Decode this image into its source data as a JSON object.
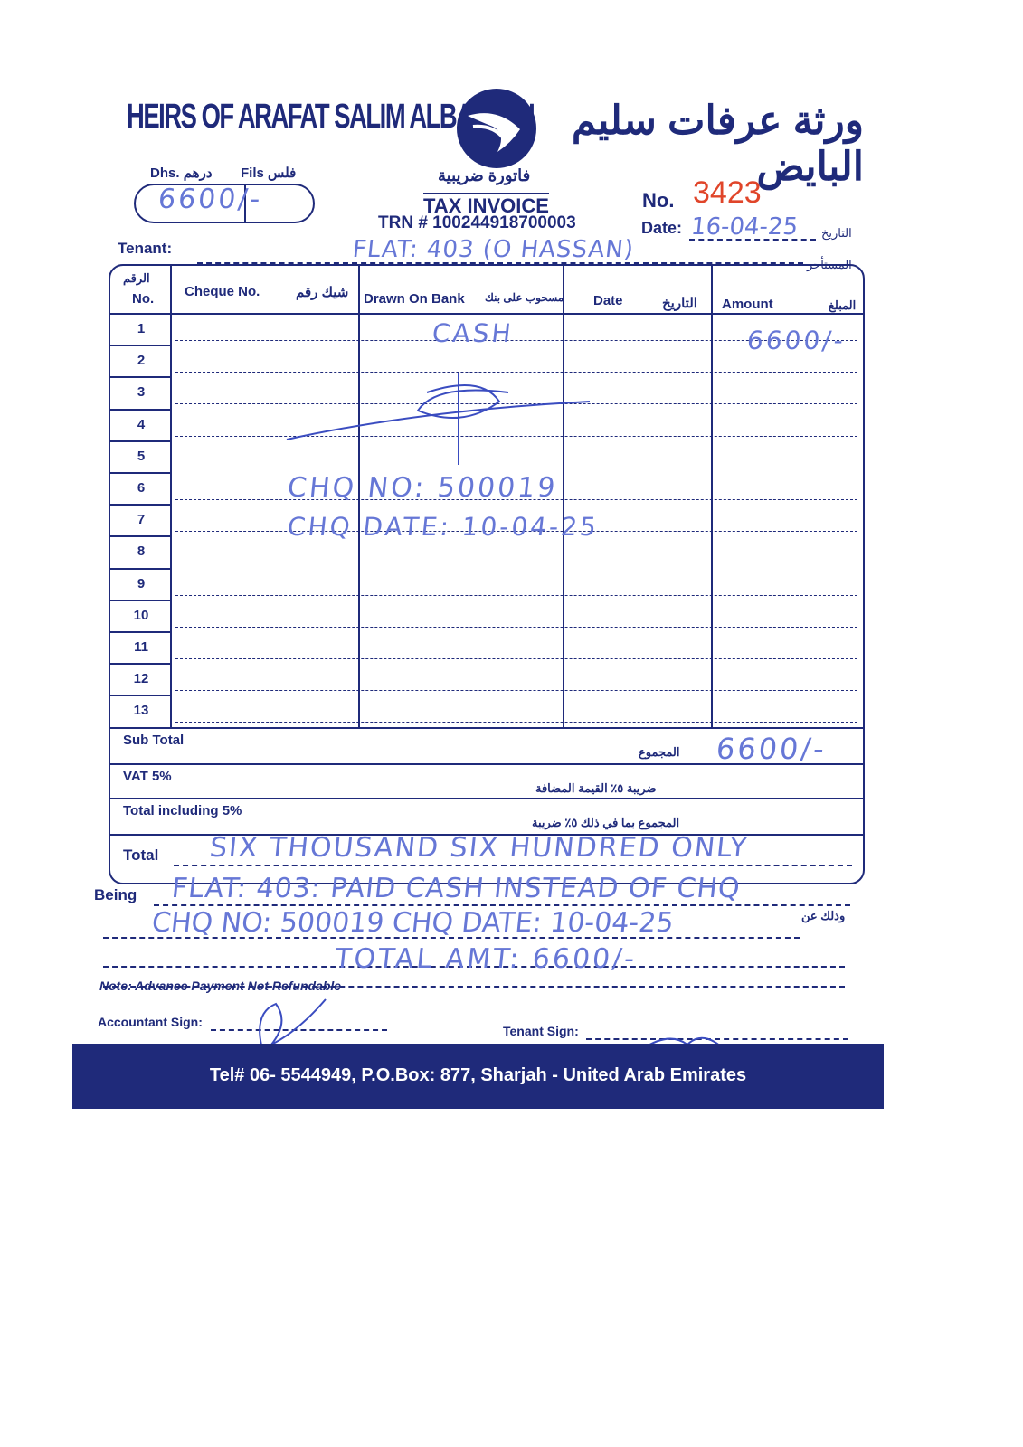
{
  "header": {
    "company_en": "HEIRS OF ARAFAT SALIM ALBAYEDH",
    "company_ar": "ورثة عرفات سليم البايض",
    "logo": "bird-logo",
    "doc_title_ar": "فاتورة ضريبية",
    "doc_title_en": "TAX INVOICE",
    "trn": "TRN # 100244918700003",
    "no_label": "No.",
    "invoice_no": "3423",
    "date_label": "Date:",
    "date_label_ar": "التاريخ",
    "date_value": "16-04-25",
    "dhs_label": "Dhs. درهم",
    "fils_label": "Fils فلس",
    "amount_value": "6600/-",
    "tenant_label": "Tenant:",
    "tenant_label_ar": "المستأجر",
    "tenant_value": "FLAT: 403 (O HASSAN)"
  },
  "table": {
    "columns": [
      {
        "en": "No.",
        "ar": "الرقم"
      },
      {
        "en": "Cheque No.",
        "ar": "شيك رقم"
      },
      {
        "en": "Drawn On Bank",
        "ar": "مسحوب على بنك"
      },
      {
        "en": "Date",
        "ar": "التاريخ"
      },
      {
        "en": "Amount",
        "ar": "المبلغ"
      }
    ],
    "row_numbers": [
      "1",
      "2",
      "3",
      "4",
      "5",
      "6",
      "7",
      "8",
      "9",
      "10",
      "11",
      "12",
      "13"
    ],
    "handwritten": {
      "bank_row1": "CASH",
      "amount_row1": "6600/-",
      "cheque_no_line": "CHQ NO: 500019",
      "cheque_date_line": "CHQ DATE: 10-04-25"
    },
    "subtotal_label": "Sub Total",
    "subtotal_label_ar": "المجموع",
    "subtotal_value": "6600/-",
    "vat_label": "VAT 5%",
    "vat_label_ar": "ضريبة ٥٪ القيمة المضافة",
    "total_incl_label": "Total including 5%",
    "total_incl_label_ar": "المجموع بما في ذلك ٥٪ ضريبة",
    "total_label": "Total",
    "total_words": "SIX THOUSAND SIX HUNDRED ONLY"
  },
  "being": {
    "label": "Being",
    "label_ar": "وذلك عن",
    "line1": "FLAT: 403: PAID CASH INSTEAD OF CHQ",
    "line2": "CHQ NO: 500019 CHQ DATE: 10-04-25",
    "line3": "TOTAL AMT: 6600/-"
  },
  "note": "Note: Advance Payment Not Refundable",
  "signs": {
    "accountant": "Accountant Sign:",
    "tenant": "Tenant Sign:"
  },
  "footer": "Tel# 06- 5544949, P.O.Box: 877, Sharjah - United Arab Emirates",
  "colors": {
    "print": "#1f2a7a",
    "ink": "#6677d6",
    "number": "#e0452a"
  }
}
